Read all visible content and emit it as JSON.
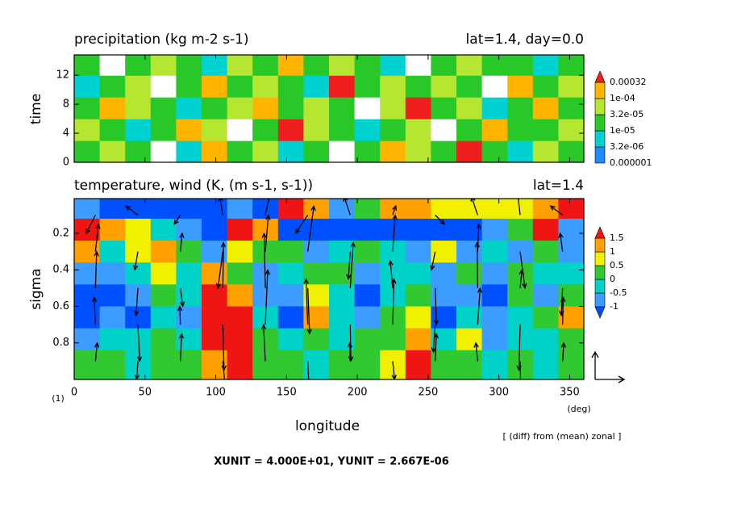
{
  "chart_data": [
    {
      "type": "contour",
      "title": "precipitation (kg m-2 s-1)",
      "subtitle": "lat=1.4, day=0.0",
      "y_label": "time",
      "xlim": [
        0,
        360
      ],
      "xticks": [
        0,
        50,
        100,
        150,
        200,
        250,
        300,
        350
      ],
      "ylim": [
        0,
        14.8
      ],
      "yticks": [
        0,
        4,
        8,
        12
      ],
      "x": [
        9,
        27,
        45,
        63,
        81,
        99,
        117,
        135,
        153,
        171,
        189,
        207,
        225,
        243,
        261,
        279,
        297,
        315,
        333,
        351
      ],
      "y": [
        1.5,
        4.5,
        7.5,
        10.5,
        13.5
      ],
      "z": [
        [
          2e-05,
          5e-05,
          2e-05,
          0,
          5e-06,
          0.0002,
          2e-05,
          5e-05,
          5e-06,
          2e-05,
          0,
          2e-05,
          0.0002,
          5e-05,
          2e-05,
          0.0005,
          2e-05,
          5e-06,
          5e-05,
          2e-05
        ],
        [
          5e-05,
          2e-05,
          5e-06,
          2e-05,
          0.0002,
          5e-05,
          0,
          2e-05,
          0.0005,
          5e-05,
          2e-05,
          5e-06,
          2e-05,
          5e-05,
          0,
          2e-05,
          0.0002,
          2e-05,
          2e-05,
          5e-05
        ],
        [
          2e-05,
          0.0002,
          5e-05,
          2e-05,
          5e-06,
          2e-05,
          5e-05,
          0.0002,
          2e-05,
          5e-05,
          2e-05,
          0,
          5e-05,
          0.0005,
          2e-05,
          5e-05,
          5e-06,
          2e-05,
          0.0002,
          2e-05
        ],
        [
          5e-06,
          2e-05,
          5e-05,
          0,
          2e-05,
          0.0002,
          2e-05,
          5e-05,
          2e-05,
          5e-06,
          0.0005,
          2e-05,
          5e-05,
          2e-05,
          5e-05,
          2e-05,
          0,
          0.0002,
          2e-05,
          5e-05
        ],
        [
          2e-05,
          0,
          2e-05,
          5e-05,
          2e-05,
          5e-06,
          5e-05,
          2e-05,
          0.0002,
          2e-05,
          5e-05,
          2e-05,
          5e-06,
          0,
          2e-05,
          5e-05,
          2e-05,
          2e-05,
          5e-06,
          2e-05
        ]
      ],
      "levels": [
        1e-06,
        {
          "value": 3.2e-06,
          "label": "3.2e-06"
        },
        {
          "value": 1e-05,
          "label": "1e-05"
        },
        {
          "value": 3.2e-05,
          "label": "3.2e-05"
        },
        {
          "value": 0.0001,
          "label": "1e-04"
        },
        0.00032
      ],
      "colors": [
        "#ffffff",
        "#1e8cff",
        "#00d2d2",
        "#28c828",
        "#b4e632",
        "#ffb400",
        "#f01e1e"
      ],
      "extend": "max"
    },
    {
      "type": "contour_vector",
      "title": "temperature, wind (K, (m s-1, s-1))",
      "subtitle": "lat=1.4",
      "y_label": "sigma",
      "x_label": "longitude",
      "x_unit": "(deg)",
      "frame_number": "(1)",
      "note": "[ (diff) from (mean) zonal ]",
      "vector_unit": {
        "label": "XUNIT = 4.000E+01, YUNIT = 2.667E-06",
        "x": 40,
        "y": 2.667e-06
      },
      "xlim": [
        0,
        360
      ],
      "xticks": [
        0,
        50,
        100,
        150,
        200,
        250,
        300,
        350
      ],
      "ylim": [
        1,
        0.01
      ],
      "yticks": [
        0.2,
        0.4,
        0.6,
        0.8
      ],
      "x": [
        9,
        27,
        45,
        63,
        81,
        99,
        117,
        135,
        153,
        171,
        189,
        207,
        225,
        243,
        261,
        279,
        297,
        315,
        333,
        351
      ],
      "y": [
        0.06,
        0.18,
        0.3,
        0.42,
        0.54,
        0.66,
        0.78,
        0.9
      ],
      "z": [
        [
          -0.8,
          -1.2,
          -1.2,
          -1.2,
          -1.2,
          -1.2,
          -0.8,
          -1.2,
          1.6,
          1.2,
          -0.8,
          0.3,
          1.2,
          1.2,
          0.8,
          0.8,
          0.6,
          0.6,
          1.2,
          1.6
        ],
        [
          1.6,
          1.2,
          0.8,
          -0.3,
          -0.8,
          -1.2,
          1.6,
          1.2,
          -1.2,
          -1.2,
          -1.2,
          -1.2,
          -1.2,
          -1.2,
          -1.2,
          -1.2,
          -0.8,
          0.2,
          1.6,
          -0.8
        ],
        [
          1.2,
          -0.3,
          0.8,
          1.2,
          0.3,
          -0.8,
          0.8,
          0.3,
          0.3,
          -0.8,
          -0.3,
          0.3,
          -0.3,
          -0.8,
          0.8,
          -0.8,
          -0.3,
          -0.8,
          0.3,
          -0.8
        ],
        [
          -0.8,
          -0.8,
          -0.3,
          0.8,
          -0.3,
          1.2,
          0.3,
          -0.8,
          -0.3,
          0.3,
          0.3,
          -0.8,
          -0.3,
          -0.3,
          -0.8,
          0.3,
          -0.8,
          0.3,
          -0.3,
          -0.3
        ],
        [
          -1.2,
          -1.2,
          -0.8,
          0.3,
          -0.3,
          1.6,
          1.2,
          -0.8,
          -0.8,
          0.8,
          -0.3,
          -1.2,
          -0.3,
          0.3,
          -0.8,
          -0.8,
          -1.2,
          0.3,
          -0.8,
          0.3
        ],
        [
          -1.2,
          -0.8,
          -1.2,
          -0.3,
          -0.8,
          1.6,
          1.6,
          -0.3,
          -1.2,
          1.2,
          -0.3,
          -0.8,
          0.3,
          0.8,
          -1.2,
          -0.3,
          -0.8,
          -0.3,
          0.3,
          1.2
        ],
        [
          -0.8,
          -0.3,
          -0.3,
          0.3,
          -0.3,
          1.6,
          1.6,
          0.3,
          -0.3,
          0.3,
          -0.3,
          0.3,
          0.3,
          1.2,
          -0.3,
          0.8,
          -0.8,
          -0.3,
          -0.3,
          0.3
        ],
        [
          0.3,
          0.3,
          -0.3,
          0.3,
          0.3,
          1.2,
          1.6,
          0.3,
          0.3,
          -0.3,
          0.3,
          0.3,
          0.8,
          1.6,
          0.3,
          0.3,
          -0.3,
          0.3,
          -0.3,
          0.3
        ]
      ],
      "levels": [
        -1,
        -0.5,
        0,
        0.5,
        1,
        1.5
      ],
      "colors": [
        "#0050ff",
        "#3c9cff",
        "#00d2c8",
        "#32c832",
        "#f0f000",
        "#ffa000",
        "#f01414"
      ],
      "extend": "both",
      "vector_x": [
        15,
        45,
        75,
        105,
        135,
        165,
        195,
        225,
        255,
        285,
        315,
        345
      ],
      "vector_y": [
        0.1,
        0.3,
        0.5,
        0.7,
        0.9
      ],
      "u": [
        [
          -15,
          -20,
          -10,
          -5,
          10,
          -20,
          -10,
          5,
          15,
          -10,
          -5,
          -20
        ],
        [
          5,
          -5,
          3,
          -8,
          5,
          10,
          -3,
          4,
          -6,
          2,
          8,
          -4
        ],
        [
          2,
          -3,
          4,
          1,
          -2,
          3,
          5,
          -4,
          2,
          -1,
          3,
          -2
        ],
        [
          -2,
          3,
          -1,
          2,
          4,
          -3,
          1,
          2,
          -3,
          4,
          -2,
          1
        ],
        [
          3,
          -2,
          2,
          4,
          -3,
          2,
          -1,
          3,
          2,
          -3,
          1,
          2
        ]
      ],
      "v": [
        [
          -2e-06,
          1e-06,
          -1e-06,
          2e-06,
          3e-06,
          -2e-06,
          2e-06,
          1e-06,
          -1e-06,
          2e-06,
          3e-06,
          1e-06
        ],
        [
          3e-06,
          -2e-06,
          2e-06,
          -4e-06,
          4e-06,
          5e-06,
          -3e-06,
          4e-06,
          -2e-06,
          3e-06,
          -4e-06,
          2e-06
        ],
        [
          4e-06,
          -3e-06,
          -2e-06,
          5e-06,
          6e-06,
          -5e-06,
          5e-06,
          3e-06,
          -4e-06,
          5e-06,
          2e-06,
          -3e-06
        ],
        [
          3e-06,
          -4e-06,
          2e-06,
          -5e-06,
          6e-06,
          5e-06,
          -4e-06,
          5e-06,
          -3e-06,
          4e-06,
          -5e-06,
          3e-06
        ],
        [
          2e-06,
          -2e-06,
          3e-06,
          -3e-06,
          4e-06,
          -3e-06,
          2e-06,
          -2e-06,
          3e-06,
          2e-06,
          -3e-06,
          2e-06
        ]
      ]
    }
  ]
}
